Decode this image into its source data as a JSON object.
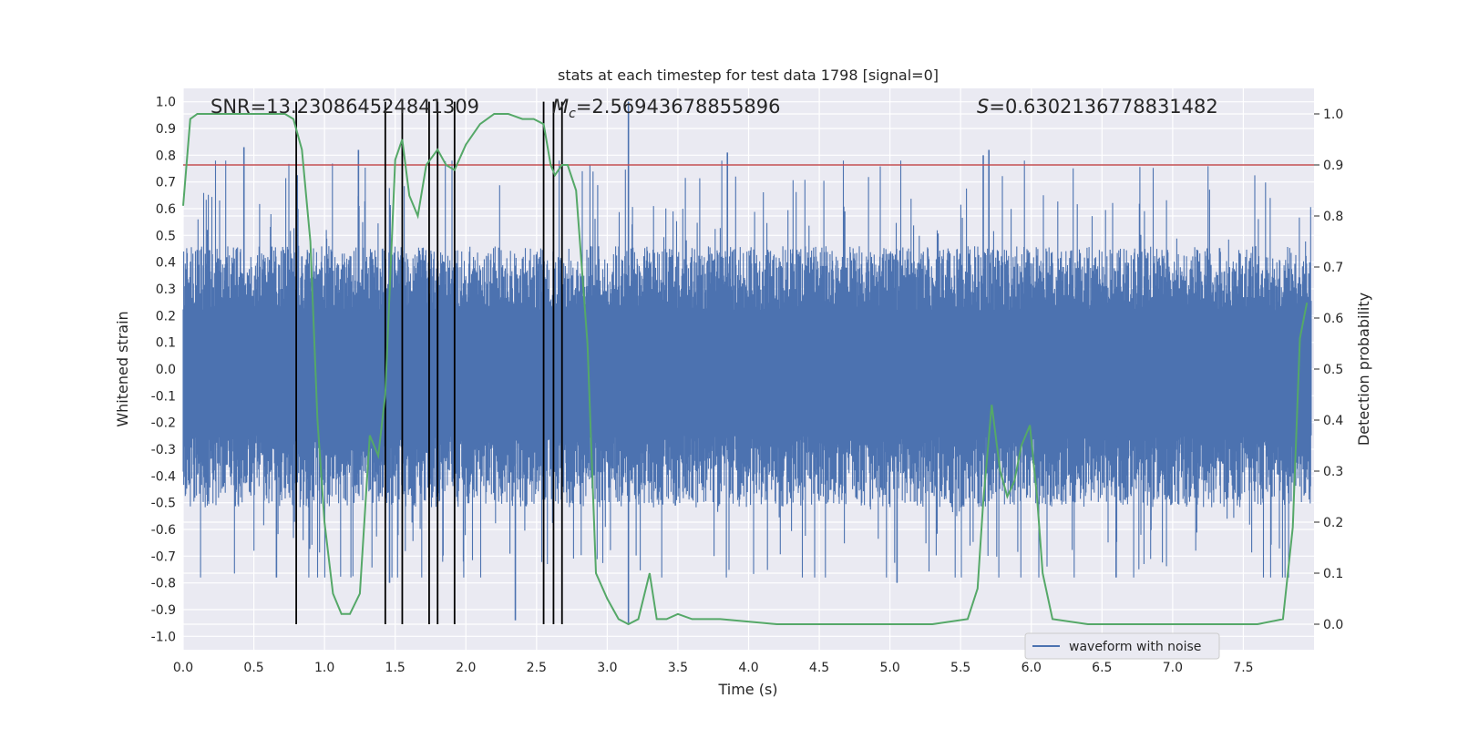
{
  "chart_data": {
    "type": "line",
    "title": "stats at each timestep for test data 1798 [signal=0]",
    "xlabel": "Time (s)",
    "ylabel_left": "Whitened strain",
    "ylabel_right": "Detection probability",
    "xlim": [
      0.0,
      8.0
    ],
    "ylim_left": [
      -1.05,
      1.05
    ],
    "ylim_right": [
      -0.05,
      1.05
    ],
    "x_ticks": [
      "0.0",
      "0.5",
      "1.0",
      "1.5",
      "2.0",
      "2.5",
      "3.0",
      "3.5",
      "4.0",
      "4.5",
      "5.0",
      "5.5",
      "6.0",
      "6.5",
      "7.0",
      "7.5"
    ],
    "y_left_ticks": [
      "1.0",
      "0.9",
      "0.8",
      "0.7",
      "0.6",
      "0.5",
      "0.4",
      "0.3",
      "0.2",
      "0.1",
      "0.0",
      "-0.1",
      "-0.2",
      "-0.3",
      "-0.4",
      "-0.5",
      "-0.6",
      "-0.7",
      "-0.8",
      "-0.9",
      "-1.0"
    ],
    "y_right_ticks": [
      "1.0",
      "0.9",
      "0.8",
      "0.7",
      "0.6",
      "0.5",
      "0.4",
      "0.3",
      "0.2",
      "0.1",
      "0.0"
    ],
    "annotations": {
      "snr": "SNR=13.230864524841309",
      "mc_symbol": "M",
      "mc_subscript": "c",
      "mc_value": "=2.56943678855896",
      "s_symbol": "S",
      "s_value": "=0.6302136778831482"
    },
    "legend": {
      "label": "waveform with noise",
      "placement": "lower-right"
    },
    "grid": true,
    "threshold_right": 0.9,
    "event_markers_x": [
      0.8,
      1.43,
      1.55,
      1.74,
      1.8,
      1.92,
      2.55,
      2.62,
      2.68
    ],
    "waveform_envelope": {
      "typical_upper": 0.4,
      "typical_lower": -0.45,
      "notable_peaks": [
        {
          "x": 0.43,
          "y": 0.83
        },
        {
          "x": 1.24,
          "y": 0.82
        },
        {
          "x": 3.15,
          "y": 1.0
        },
        {
          "x": 3.85,
          "y": 0.81
        },
        {
          "x": 5.7,
          "y": 0.82
        },
        {
          "x": 5.66,
          "y": 0.8
        }
      ],
      "notable_troughs": [
        {
          "x": 0.66,
          "y": -0.78
        },
        {
          "x": 1.46,
          "y": -0.8
        },
        {
          "x": 2.35,
          "y": -0.94
        },
        {
          "x": 3.15,
          "y": -0.95
        },
        {
          "x": 5.05,
          "y": -0.8
        },
        {
          "x": 6.6,
          "y": -0.78
        }
      ]
    },
    "series": [
      {
        "name": "waveform with noise",
        "color": "#4c72b0",
        "kind": "noise-waveform"
      },
      {
        "color": "#55a868",
        "axis": "right",
        "x": [
          0.0,
          0.05,
          0.1,
          0.2,
          0.4,
          0.6,
          0.72,
          0.78,
          0.84,
          0.9,
          0.95,
          1.0,
          1.06,
          1.12,
          1.18,
          1.25,
          1.32,
          1.38,
          1.43,
          1.5,
          1.55,
          1.6,
          1.66,
          1.72,
          1.8,
          1.86,
          1.92,
          2.0,
          2.1,
          2.2,
          2.3,
          2.4,
          2.48,
          2.55,
          2.6,
          2.63,
          2.68,
          2.72,
          2.78,
          2.86,
          2.92,
          3.0,
          3.08,
          3.15,
          3.22,
          3.3,
          3.35,
          3.42,
          3.5,
          3.6,
          3.8,
          4.2,
          4.6,
          5.0,
          5.3,
          5.55,
          5.62,
          5.66,
          5.72,
          5.78,
          5.83,
          5.88,
          5.93,
          5.99,
          6.04,
          6.08,
          6.15,
          6.4,
          7.0,
          7.4,
          7.6,
          7.78,
          7.85,
          7.9,
          7.95
        ],
        "y": [
          0.82,
          0.99,
          1.0,
          1.0,
          1.0,
          1.0,
          1.0,
          0.99,
          0.93,
          0.75,
          0.4,
          0.2,
          0.06,
          0.02,
          0.02,
          0.06,
          0.37,
          0.33,
          0.45,
          0.91,
          0.95,
          0.84,
          0.8,
          0.9,
          0.93,
          0.9,
          0.89,
          0.94,
          0.98,
          1.0,
          1.0,
          0.99,
          0.99,
          0.98,
          0.9,
          0.88,
          0.9,
          0.9,
          0.85,
          0.55,
          0.1,
          0.05,
          0.01,
          0.0,
          0.01,
          0.1,
          0.01,
          0.01,
          0.02,
          0.01,
          0.01,
          0.0,
          0.0,
          0.0,
          0.0,
          0.01,
          0.07,
          0.24,
          0.43,
          0.3,
          0.25,
          0.28,
          0.35,
          0.39,
          0.25,
          0.1,
          0.01,
          0.0,
          0.0,
          0.0,
          0.0,
          0.01,
          0.19,
          0.56,
          0.63
        ]
      }
    ]
  }
}
